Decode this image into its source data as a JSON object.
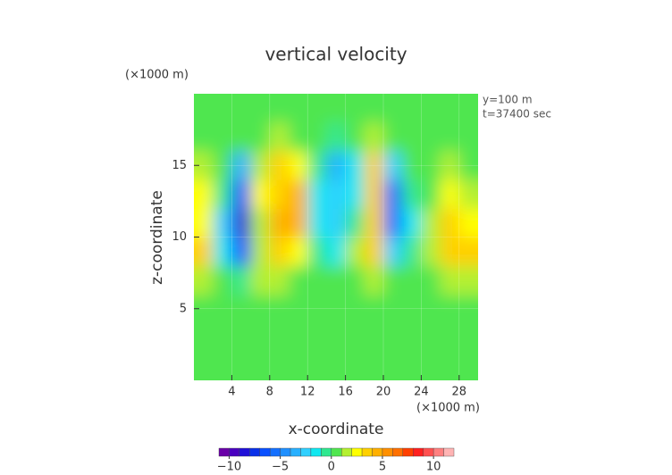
{
  "chart_data": {
    "type": "contour",
    "title": "vertical velocity",
    "x_unit": "(×1000 m)",
    "y_unit": "(×1000 m)",
    "annotations": [
      "y=100 m",
      "t=37400 sec"
    ],
    "xlabel": "x-coordinate",
    "ylabel": "z-coordinate",
    "xlim": [
      0,
      30
    ],
    "ylim": [
      0,
      20
    ],
    "xticks": [
      4,
      8,
      12,
      16,
      20,
      24,
      28
    ],
    "yticks": [
      5,
      10,
      15
    ],
    "x": [
      1,
      3,
      5,
      7,
      9,
      11,
      13,
      15,
      17,
      19,
      21,
      23,
      25,
      27,
      29
    ],
    "y": [
      1,
      3,
      5,
      7,
      9,
      11,
      13,
      15,
      17,
      19
    ],
    "z": [
      [
        0,
        0,
        0,
        0,
        0,
        0,
        0,
        0,
        0,
        0,
        0,
        0,
        0,
        0,
        0
      ],
      [
        0,
        0,
        0,
        0,
        0,
        0,
        0,
        0,
        0,
        0,
        0,
        0,
        0,
        0,
        0
      ],
      [
        0,
        0,
        0,
        0,
        0,
        0,
        0,
        0,
        0,
        0,
        0,
        0,
        0,
        0,
        0
      ],
      [
        1,
        0,
        -1,
        1,
        1,
        0,
        0,
        0,
        0,
        1,
        0,
        0,
        0,
        1,
        1
      ],
      [
        3,
        -2,
        -7,
        1,
        3,
        2,
        -1,
        -2,
        1,
        3,
        -3,
        -1,
        1,
        3,
        3
      ],
      [
        2,
        -3,
        -9,
        1,
        4,
        4,
        -2,
        -3,
        -1,
        3,
        -6,
        -2,
        1,
        3,
        2
      ],
      [
        2,
        -1,
        -7,
        2,
        3,
        4,
        -2,
        -3,
        -2,
        3,
        -6,
        -1,
        0,
        2,
        1
      ],
      [
        1,
        0,
        -4,
        1,
        3,
        2,
        -1,
        -4,
        -2,
        3,
        -3,
        0,
        0,
        1,
        0
      ],
      [
        0,
        0,
        0,
        0,
        1,
        0,
        0,
        -1,
        0,
        1,
        0,
        0,
        0,
        0,
        0
      ],
      [
        0,
        0,
        0,
        0,
        0,
        0,
        0,
        0,
        0,
        0,
        0,
        0,
        0,
        0,
        0
      ]
    ],
    "levels": [
      -11,
      -10,
      -9,
      -8,
      -7,
      -6,
      -5,
      -4,
      -3,
      -2,
      -1,
      0,
      1,
      2,
      3,
      4,
      5,
      6,
      7,
      8,
      9,
      10,
      11,
      12
    ],
    "colors": [
      "#6a00a8",
      "#4a00c0",
      "#2010d8",
      "#0a30e8",
      "#0a50ff",
      "#1470ff",
      "#2090ff",
      "#28b0ff",
      "#30d0ff",
      "#10e8f0",
      "#30e890",
      "#50e650",
      "#b4f030",
      "#ffff00",
      "#ffd000",
      "#ffb000",
      "#ff9000",
      "#ff7000",
      "#ff4000",
      "#ff2020",
      "#ff5050",
      "#ff8080",
      "#ffb4b4"
    ],
    "cticks": [
      {
        "value": -10,
        "label": "−10"
      },
      {
        "value": -5,
        "label": "−5"
      },
      0,
      5,
      10
    ],
    "grid": true
  }
}
